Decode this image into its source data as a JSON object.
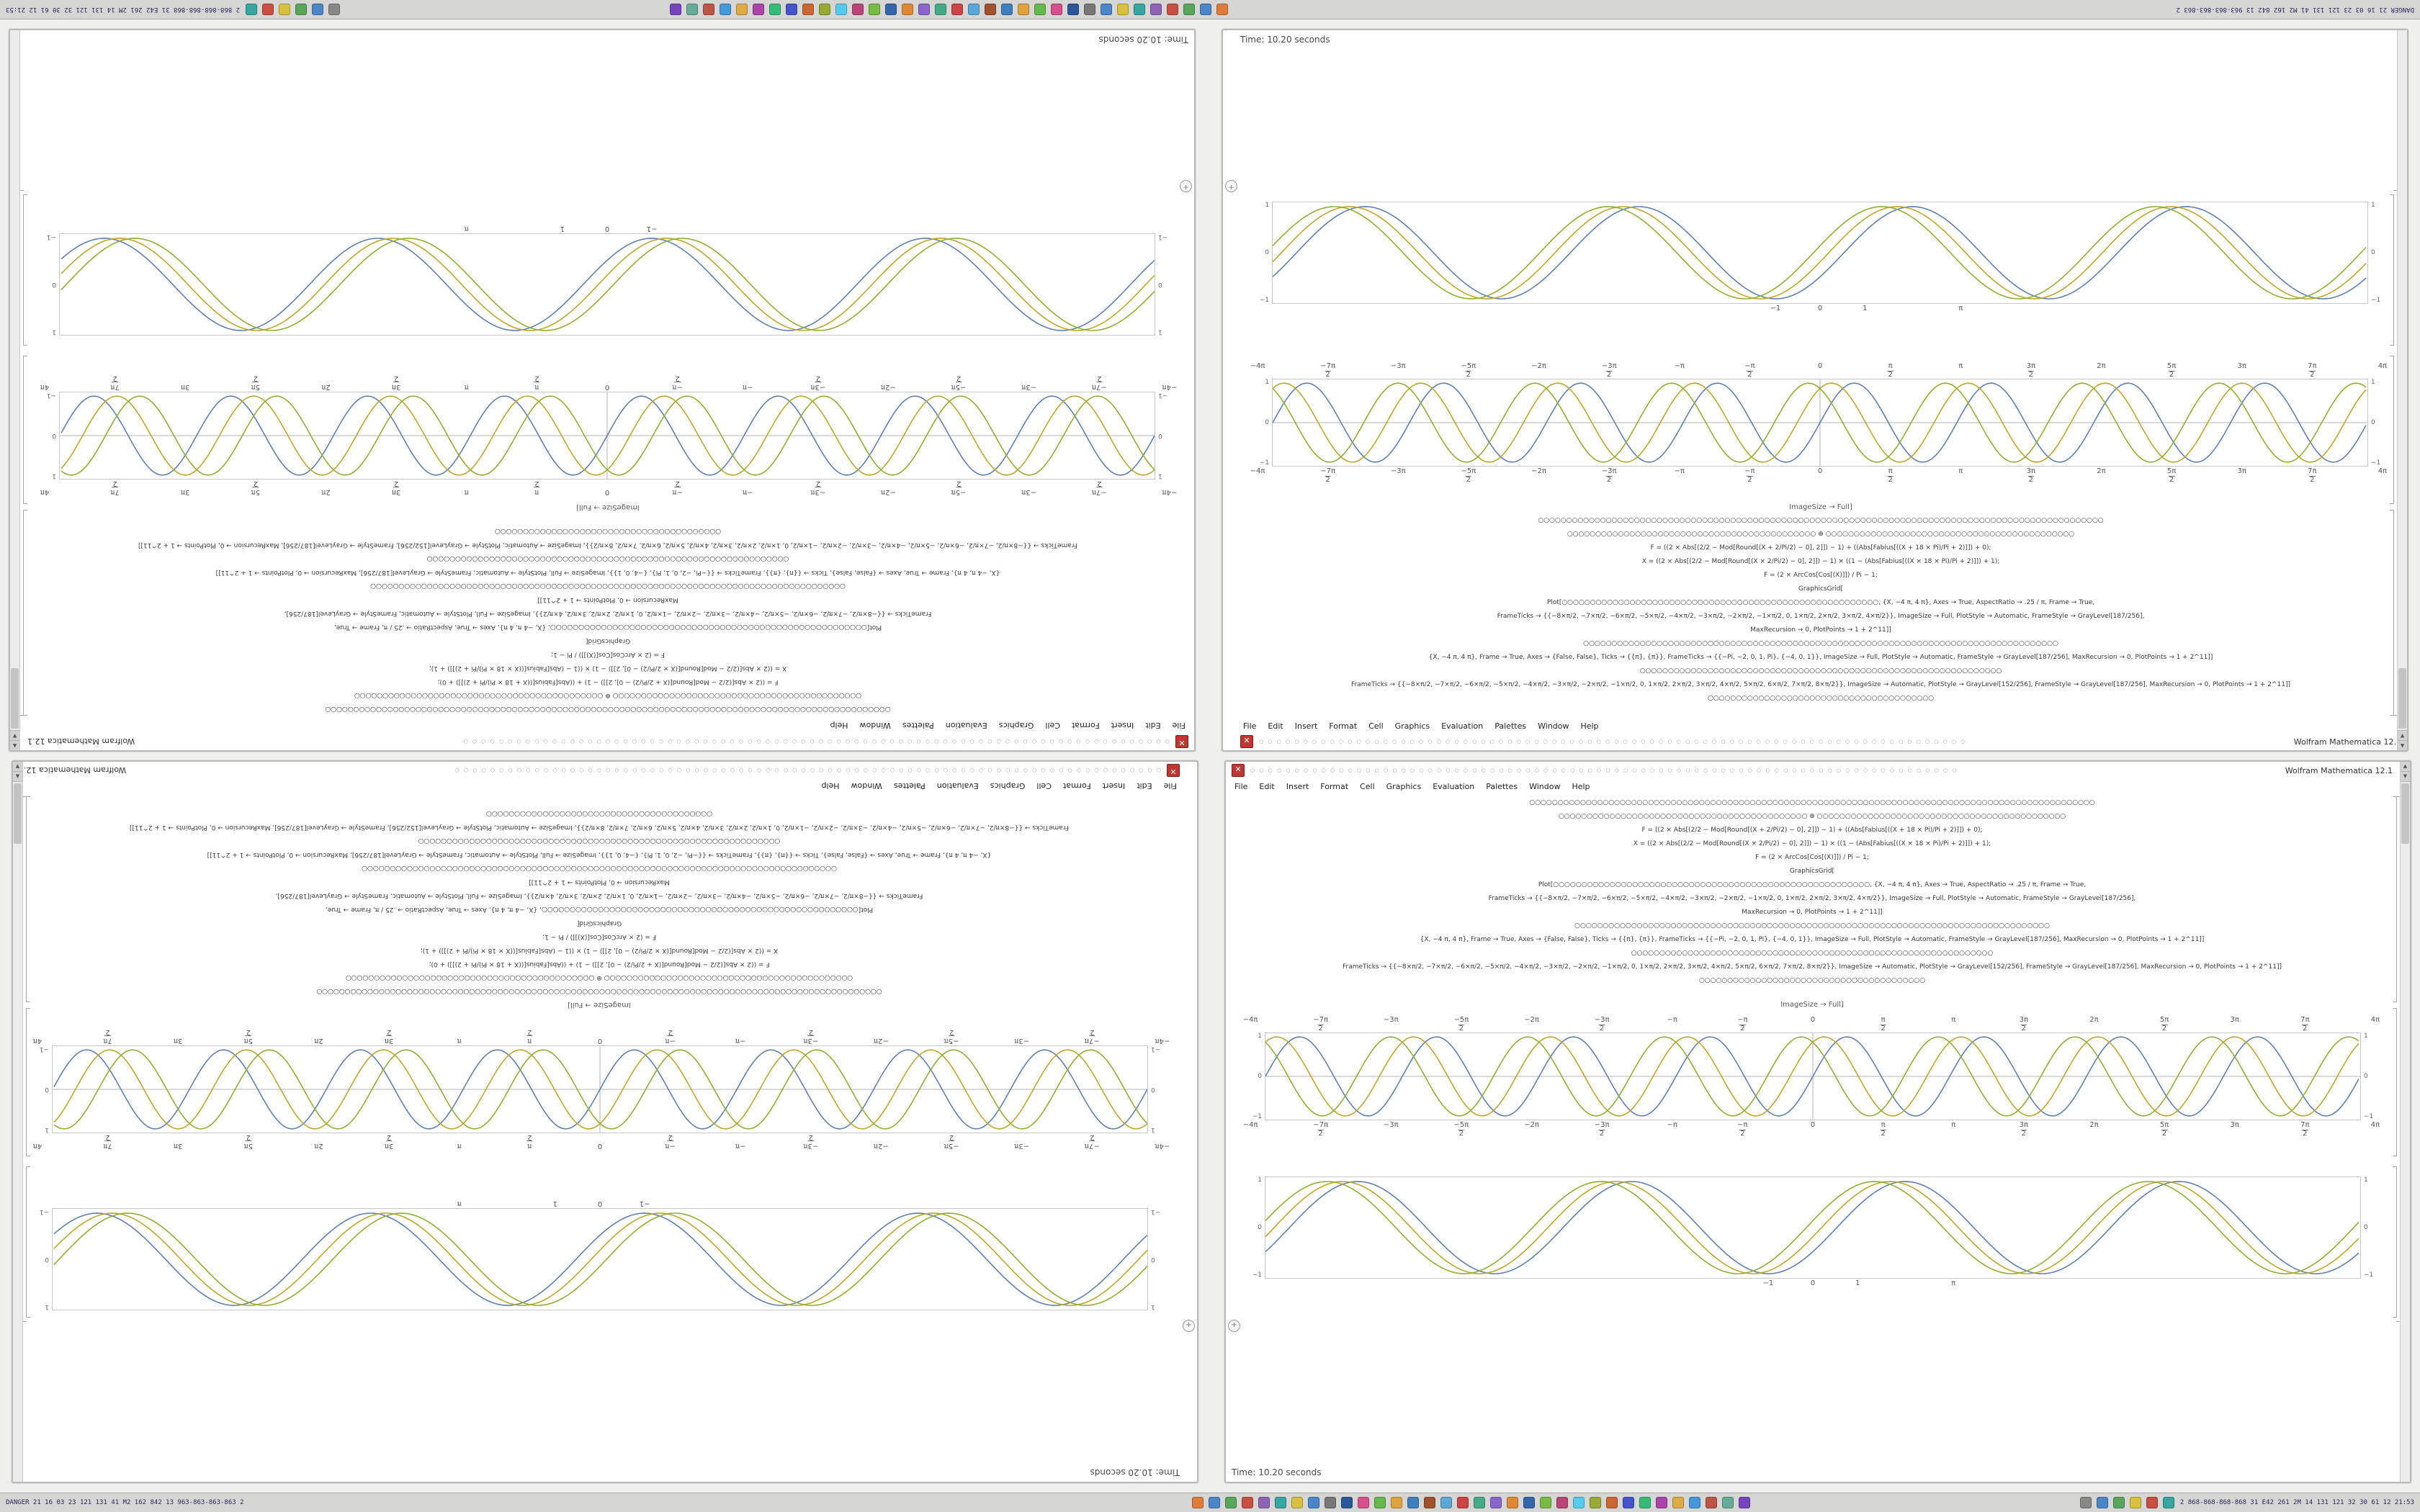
{
  "desktop": {
    "canvas_color": "#efefed"
  },
  "window": {
    "title": "Wolfram Mathematica 12.1",
    "close_glyph": "✕",
    "titlebar_dots": "○ ○ ○ ○ ○ ○ ○ ○ ○ ○ ○ ○ ○ ○ ○ ○ ○ ○ ○ ○ ○ ○ ○ ○ ○ ○ ○ ○ ○ ○ ○ ○ ○ ○ ○ ○ ○ ○ ○ ○ ○ ○ ○ ○ ○ ○ ○ ○ ○ ○ ○ ○ ○ ○ ○ ○ ○ ○ ○ ○ ○ ○ ○ ○ ○ ○ ○ ○ ○ ○ ○ ○ ○ ○ ○ ○ ○ ○ ○ ○",
    "menu_items": [
      "File",
      "Edit",
      "Insert",
      "Format",
      "Cell",
      "Graphics",
      "Evaluation",
      "Palettes",
      "Window",
      "Help"
    ],
    "code_lines": [
      "○○○○○○○○○○○○○○○○○○○○○○○○○○○○○○○○○○○○○○○○○○○○○○○○○○○○○○○○○○○○○○○○○○○○○○○○○○○○○○○○○○○○○○○○○○○○○○○○○○○○",
      "○○○○○○○○○○○○○○○○○○○○○○○○○○○○○○○○○○○○○○○○○○○○  ⊕  ○○○○○○○○○○○○○○○○○○○○○○○○○○○○○○○○○○○○○○○○○○○○",
      "F = ((2 × Abs[(2/2 − Mod[Round[(X + 2/Pi/2) − 0], 2]]) − 1) + ((Abs[Fabius[((X + 18 × Pi)/Pi + 2)]]) + 0);",
      "X = ((2 × Abs[(2/2 − Mod[Round[(X × 2/Pi/2) − 0], 2]]) − 1) × ((1 − (Abs[Fabius[((X × 18 × Pi)/Pi + 2)]]) + 1);",
      "F = (2 × ArcCos[Cos[(X)]]) / Pi − 1;",
      "GraphicsGrid[",
      "Plot[○○○○○○○○○○○○○○○○○○○○○○○○○○○○○○○○○○○○○○○○○○○○○○○○○○○○○○○○, {X, −4 π, 4 π}, Axes → True, AspectRatio → .25 / π, Frame → True,",
      "FrameTicks → {{−8×π/2, −7×π/2, −6×π/2, −5×π/2, −4×π/2, −3×π/2, −2×π/2, −1×π/2, 0, 1×π/2, 2×π/2, 3×π/2, 4×π/2}}, ImageSize → Full, PlotStyle → Automatic, FrameStyle → GrayLevel[187/256],",
      "MaxRecursion → 0, PlotPoints → 1 + 2^11]]",
      "○○○○○○○○○○○○○○○○○○○○○○○○○○○○○○○○○○○○○○○○○○○○○○○○○○○○○○○○○○○○○○○○○○○○○○○○○○○○○○○○○○○○",
      "{X, −4 π, 4 π}, Frame → True, Axes → {False, False}, Ticks → {{π}, {π}}, FrameTicks → {{−Pi, −2, 0, 1, Pi}, {−4, 0, 1}}, ImageSize → Full, PlotStyle → Automatic, FrameStyle → GrayLevel[187/256], MaxRecursion → 0, PlotPoints → 1 + 2^11]]",
      "○○○○○○○○○○○○○○○○○○○○○○○○○○○○○○○○○○○○○○○○○○○○○○○○○○○○○○○○○○○○○○○○",
      "FrameTicks → {{−8×π/2, −7×π/2, −6×π/2, −5×π/2, −4×π/2, −3×π/2, −2×π/2, −1×π/2, 0, 1×π/2, 2×π/2, 3×π/2, 4×π/2, 5×π/2, 6×π/2, 7×π/2, 8×π/2}}, ImageSize → Automatic, PlotStyle → GrayLevel[152/256], FrameStyle → GrayLevel[187/256], MaxRecursion → 0, PlotPoints → 1 + 2^11]]",
      "○○○○○○○○○○○○○○○○○○○○○○○○○○○○○○○○○○○○○○○○"
    ],
    "caption": "ImageSize → Full]",
    "badge_glyph": "+",
    "status_text": "Time: 10.20 seconds",
    "scroll_up_glyph": "▲",
    "scroll_down_glyph": "▼"
  },
  "chart_data": [
    {
      "type": "line",
      "name": "framed-wave-plot-pi-ticks",
      "title": "",
      "x_domain": [
        -12.566,
        12.566
      ],
      "ylim": [
        -1,
        1
      ],
      "x_tick_labels": [
        "−4π",
        "−7π/2",
        "−3π",
        "−5π/2",
        "−2π",
        "−3π/2",
        "−π",
        "−π/2",
        "0",
        "π/2",
        "π",
        "3π/2",
        "2π",
        "5π/2",
        "3π",
        "7π/2",
        "4π"
      ],
      "y_tick_labels": [
        "1",
        "0",
        "−1"
      ],
      "frame": true,
      "axes": true,
      "series": [
        {
          "name": "wave-blue",
          "color": "#5e81b5",
          "amp": 0.98,
          "freq": 2,
          "phase": 0
        },
        {
          "name": "wave-olive",
          "color": "#c2a62c",
          "amp": 0.98,
          "freq": 2,
          "phase": 1.05
        },
        {
          "name": "wave-green",
          "color": "#8fb032",
          "amp": 0.98,
          "freq": 2,
          "phase": 2.1
        }
      ]
    },
    {
      "type": "line",
      "name": "framed-wave-plot-smooth",
      "title": "",
      "x_domain": [
        -12.566,
        12.566
      ],
      "ylim": [
        -1,
        1
      ],
      "x_ticks": [
        {
          "label": "−1",
          "v": -1
        },
        {
          "label": "0",
          "v": 0
        },
        {
          "label": "1",
          "v": 1
        },
        {
          "label": "π",
          "v": 3.1416
        }
      ],
      "y_tick_labels": [
        "1",
        "0",
        "−1"
      ],
      "frame": true,
      "axes": false,
      "series": [
        {
          "name": "wave-blue",
          "color": "#5e81b5",
          "amp": 0.97,
          "freq": 1,
          "phase": -0.55
        },
        {
          "name": "wave-olive",
          "color": "#c2a62c",
          "amp": 0.97,
          "freq": 1,
          "phase": -0.2
        },
        {
          "name": "wave-green",
          "color": "#8fb032",
          "amp": 0.97,
          "freq": 1,
          "phase": 0.15
        }
      ]
    }
  ],
  "taskbar": {
    "left_text": "DANGER 21 16 03 23 121 131 41 M2 162 842 13 963-863-863-863 2",
    "right_text": "2 868-868-868-868 31 E42 261 2M 14 131 121 32 30 61 12 21:53",
    "app_icon_colors": [
      "#e07b39",
      "#4a86c8",
      "#58a55c",
      "#c94f43",
      "#8e63b5",
      "#35a6a0",
      "#d8c13e",
      "#4a86c8",
      "#777777",
      "#2b5797",
      "#d84f8e",
      "#65b84a",
      "#e0a23d",
      "#3f7fbf",
      "#a0522d",
      "#5aa8d8",
      "#cc4444",
      "#44aa88",
      "#8866cc",
      "#dd8833",
      "#3366aa",
      "#77bb44",
      "#bb4477",
      "#55ccee",
      "#99aa33",
      "#cc6633",
      "#4455cc",
      "#33bb77",
      "#aa44aa",
      "#ddaa44",
      "#4499dd",
      "#bb5544",
      "#66aa99",
      "#7744bb"
    ],
    "tray_icon_colors": [
      "#888888",
      "#4a86c8",
      "#58a55c",
      "#d8c13e",
      "#c94f43",
      "#35a6a0"
    ]
  }
}
